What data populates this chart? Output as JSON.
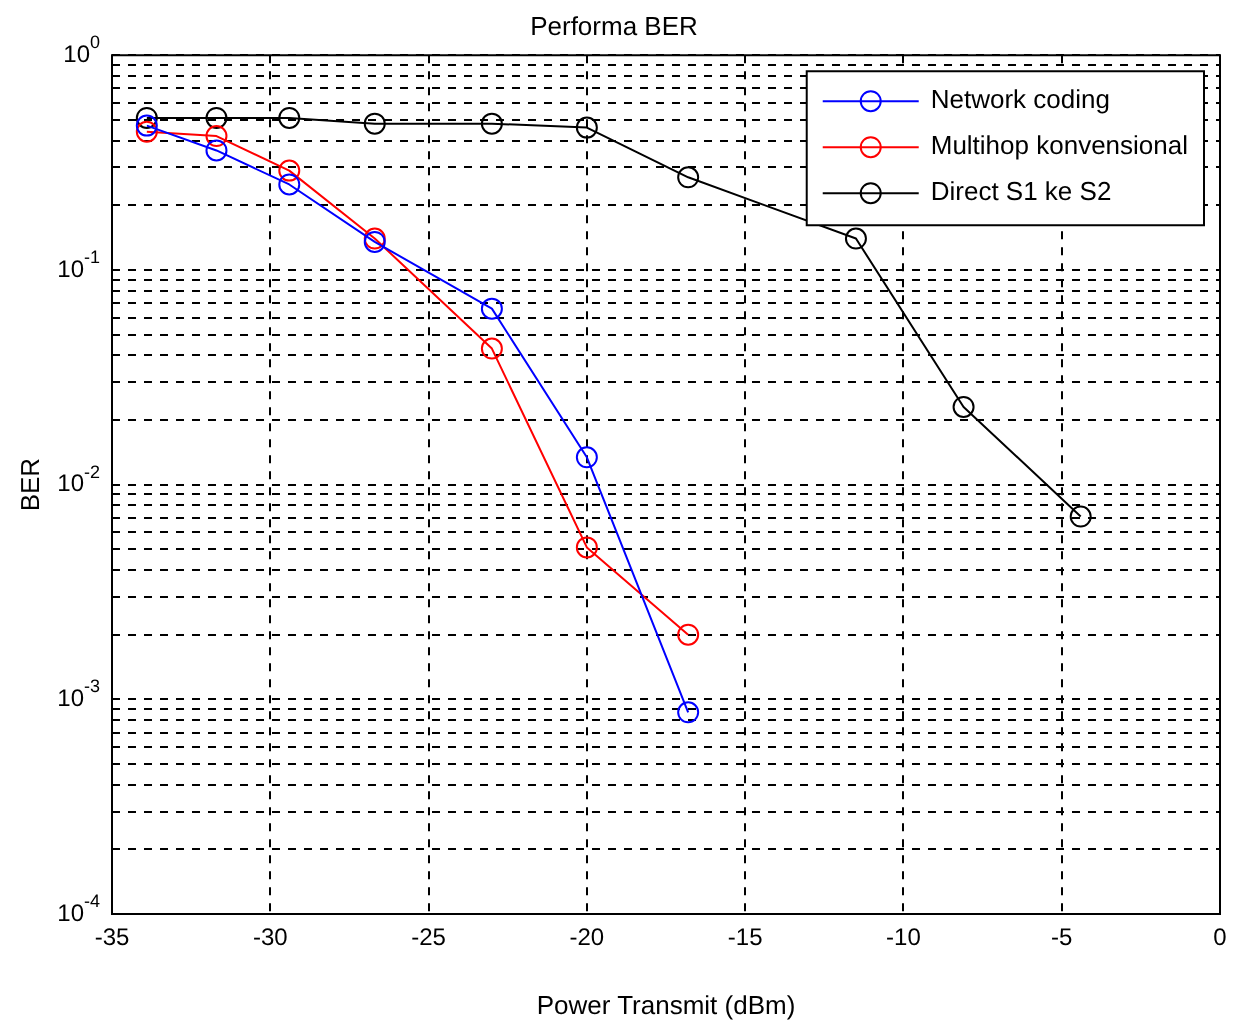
{
  "chart_data": {
    "type": "line",
    "title": "Performa BER",
    "xlabel": "Power Transmit (dBm)",
    "ylabel": "BER",
    "xlim": [
      -35,
      0
    ],
    "xticks": [
      -35,
      -30,
      -25,
      -20,
      -15,
      -10,
      -5,
      0
    ],
    "ylim": [
      0.0001,
      1
    ],
    "log": "y",
    "yticks": [
      {
        "value": 0.0001,
        "label": "10$^{-4}$"
      },
      {
        "value": 0.0002,
        "label": null
      },
      {
        "value": 0.0003,
        "label": null
      },
      {
        "value": 0.0004,
        "label": null
      },
      {
        "value": 0.0005,
        "label": null
      },
      {
        "value": 0.0006,
        "label": null
      },
      {
        "value": 0.0007,
        "label": null
      },
      {
        "value": 0.0008,
        "label": null
      },
      {
        "value": 0.0009,
        "label": null
      },
      {
        "value": 0.001,
        "label": "10$^{-3}$"
      },
      {
        "value": 0.002,
        "label": null
      },
      {
        "value": 0.003,
        "label": null
      },
      {
        "value": 0.004,
        "label": null
      },
      {
        "value": 0.005,
        "label": null
      },
      {
        "value": 0.006,
        "label": null
      },
      {
        "value": 0.007,
        "label": null
      },
      {
        "value": 0.008,
        "label": null
      },
      {
        "value": 0.009,
        "label": null
      },
      {
        "value": 0.01,
        "label": "10$^{-2}$"
      },
      {
        "value": 0.02,
        "label": null
      },
      {
        "value": 0.03,
        "label": null
      },
      {
        "value": 0.04,
        "label": null
      },
      {
        "value": 0.05,
        "label": null
      },
      {
        "value": 0.06,
        "label": null
      },
      {
        "value": 0.07,
        "label": null
      },
      {
        "value": 0.08,
        "label": null
      },
      {
        "value": 0.09,
        "label": null
      },
      {
        "value": 0.1,
        "label": "10$^{-1}$"
      },
      {
        "value": 0.2,
        "label": null
      },
      {
        "value": 0.3,
        "label": null
      },
      {
        "value": 0.4,
        "label": null
      },
      {
        "value": 0.5,
        "label": null
      },
      {
        "value": 0.6,
        "label": null
      },
      {
        "value": 0.7,
        "label": null
      },
      {
        "value": 0.8,
        "label": null
      },
      {
        "value": 0.9,
        "label": null
      },
      {
        "value": 1,
        "label": "10$^{0}$"
      }
    ],
    "grid": true,
    "legend": "top right",
    "marker": "circle",
    "line_style": "solid",
    "series": [
      {
        "name": "Network coding",
        "color": "#0000ff",
        "x": [
          -33.9,
          -31.7,
          -29.4,
          -26.7,
          -23,
          -20,
          -16.8
        ],
        "values": [
          0.47,
          0.36,
          0.25,
          0.135,
          0.066,
          0.0134,
          0.00087
        ]
      },
      {
        "name": "Multihop konvensional",
        "color": "#ff0000",
        "x": [
          -33.9,
          -31.7,
          -29.4,
          -26.7,
          -23,
          -20,
          -16.8
        ],
        "values": [
          0.44,
          0.42,
          0.29,
          0.14,
          0.043,
          0.0051,
          0.002
        ]
      },
      {
        "name": "Direct S1 ke S2",
        "color": "#000000",
        "x": [
          -33.9,
          -31.7,
          -29.4,
          -26.7,
          -23,
          -20,
          -16.8,
          -11.5,
          -8.1,
          -4.4
        ],
        "values": [
          0.51,
          0.51,
          0.51,
          0.48,
          0.48,
          0.46,
          0.27,
          0.14,
          0.023,
          0.0071
        ]
      }
    ]
  }
}
